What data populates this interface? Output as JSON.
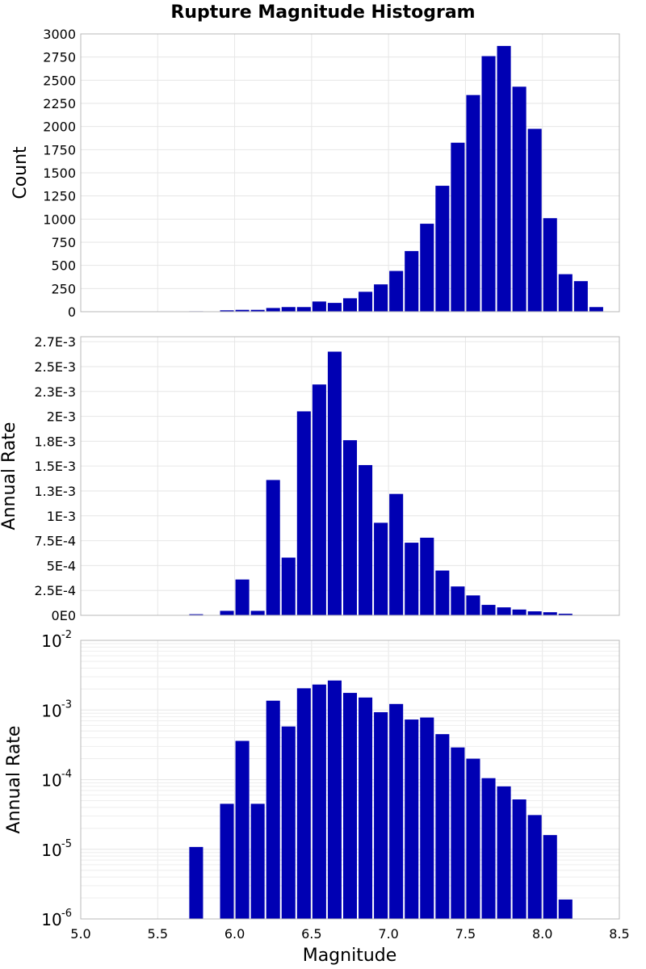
{
  "title": "Rupture Magnitude Histogram",
  "xlabel": "Magnitude",
  "x_ticks": [
    "5.0",
    "5.5",
    "6.0",
    "6.5",
    "7.0",
    "7.5",
    "8.0",
    "8.5"
  ],
  "colors": {
    "bar": "#0000b3",
    "background": "#ffffff",
    "grid": "#e6e6e6",
    "frame": "#b8b8b8"
  },
  "chart_data": [
    {
      "type": "bar",
      "title": "Rupture Magnitude Histogram",
      "xlabel": "Magnitude",
      "ylabel": "Count",
      "xlim": [
        5.0,
        8.5
      ],
      "ylim": [
        0,
        3000
      ],
      "bin_width": 0.1,
      "grid": true,
      "y_ticks": [
        "0",
        "250",
        "500",
        "750",
        "1000",
        "1250",
        "1500",
        "1750",
        "2000",
        "2250",
        "2500",
        "2750",
        "3000"
      ],
      "x": [
        5.75,
        5.95,
        6.05,
        6.15,
        6.25,
        6.35,
        6.45,
        6.55,
        6.65,
        6.75,
        6.85,
        6.95,
        7.05,
        7.15,
        7.25,
        7.35,
        7.45,
        7.55,
        7.65,
        7.75,
        7.85,
        7.95,
        8.05,
        8.15,
        8.25,
        8.35
      ],
      "values": [
        5,
        15,
        20,
        20,
        40,
        50,
        50,
        110,
        95,
        145,
        215,
        295,
        440,
        655,
        950,
        1360,
        1825,
        2340,
        2760,
        2870,
        2430,
        1975,
        1010,
        405,
        330,
        50
      ]
    },
    {
      "type": "bar",
      "xlabel": "Magnitude",
      "ylabel": "Annual Rate",
      "xlim": [
        5.0,
        8.5
      ],
      "ylim": [
        0,
        0.0028
      ],
      "bin_width": 0.1,
      "grid": true,
      "y_ticks": [
        "0E0",
        "2.5E-4",
        "5E-4",
        "7.5E-4",
        "1E-3",
        "1.3E-3",
        "1.5E-3",
        "1.8E-3",
        "2E-3",
        "2.3E-3",
        "2.5E-3",
        "2.7E-3"
      ],
      "x": [
        5.75,
        5.95,
        6.05,
        6.15,
        6.25,
        6.35,
        6.45,
        6.55,
        6.65,
        6.75,
        6.85,
        6.95,
        7.05,
        7.15,
        7.25,
        7.35,
        7.45,
        7.55,
        7.65,
        7.75,
        7.85,
        7.95,
        8.05,
        8.15
      ],
      "values": [
        1.1e-05,
        4.5e-05,
        0.00036,
        4.5e-05,
        0.00136,
        0.00058,
        0.00205,
        0.00232,
        0.00265,
        0.00176,
        0.00151,
        0.00093,
        0.00122,
        0.00073,
        0.00078,
        0.00045,
        0.00029,
        0.0002,
        0.000105,
        8e-05,
        5.8e-05,
        4e-05,
        3.1e-05,
        1.6e-05
      ]
    },
    {
      "type": "bar",
      "xlabel": "Magnitude",
      "ylabel": "Annual Rate",
      "xlim": [
        5.0,
        8.5
      ],
      "ylim": [
        1e-06,
        0.01
      ],
      "y_scale": "log",
      "bin_width": 0.1,
      "grid": true,
      "y_ticks": [
        {
          "base": "10",
          "exp": "-6"
        },
        {
          "base": "10",
          "exp": "-5"
        },
        {
          "base": "10",
          "exp": "-4"
        },
        {
          "base": "10",
          "exp": "-3"
        },
        {
          "base": "10",
          "exp": "-2"
        }
      ],
      "x": [
        5.75,
        5.95,
        6.05,
        6.15,
        6.25,
        6.35,
        6.45,
        6.55,
        6.65,
        6.75,
        6.85,
        6.95,
        7.05,
        7.15,
        7.25,
        7.35,
        7.45,
        7.55,
        7.65,
        7.75,
        7.85,
        7.95,
        8.05,
        8.15
      ],
      "values": [
        1.08e-05,
        4.5e-05,
        0.00036,
        4.5e-05,
        0.00136,
        0.00058,
        0.00205,
        0.00232,
        0.00265,
        0.00176,
        0.00151,
        0.00093,
        0.00122,
        0.00073,
        0.00078,
        0.00045,
        0.00029,
        0.0002,
        0.000105,
        8e-05,
        5.2e-05,
        3.1e-05,
        1.6e-05,
        1.9e-06
      ]
    }
  ]
}
